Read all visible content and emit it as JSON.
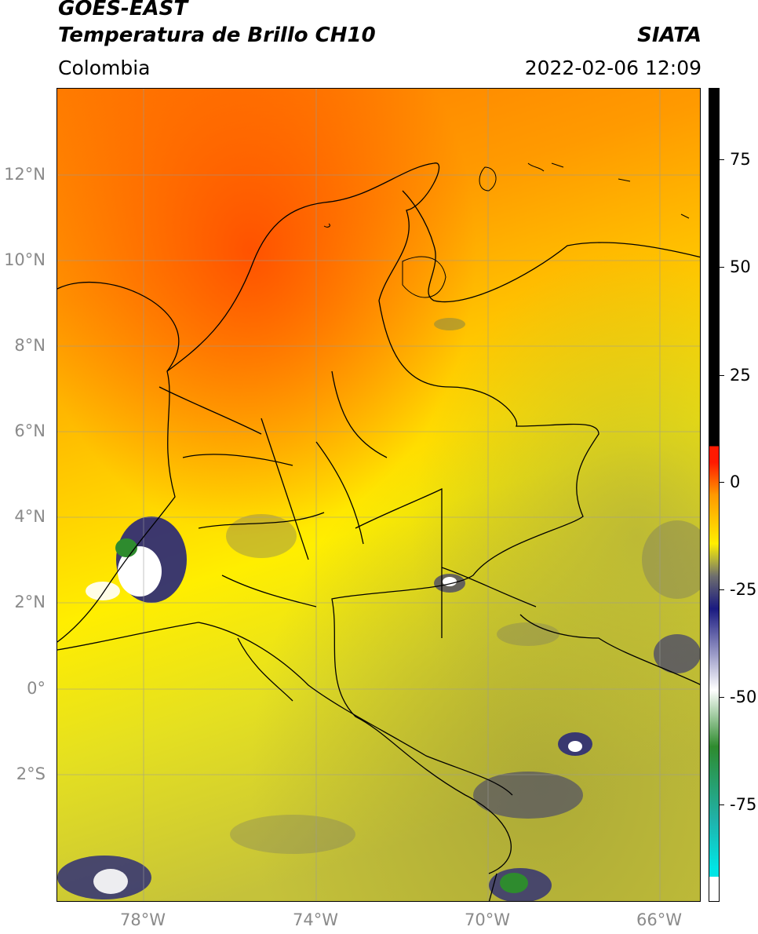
{
  "header": {
    "title_line1": "GOES-EAST",
    "title_line2": "Temperatura de Brillo CH10",
    "organization": "SIATA",
    "region": "Colombia",
    "datetime": "2022-02-06 12:09"
  },
  "map": {
    "lat_labels": [
      "12°N",
      "10°N",
      "8°N",
      "6°N",
      "4°N",
      "2°N",
      "0°",
      "2°S"
    ],
    "lon_labels": [
      "78°W",
      "74°W",
      "70°W",
      "66°W"
    ]
  },
  "colorbar": {
    "ticks": [
      "75",
      "50",
      "25",
      "0",
      "-25",
      "-50",
      "-75"
    ],
    "colors": {
      "black": "#000000",
      "red": "#ff1a00",
      "orange": "#ff9900",
      "yellow": "#ffee00",
      "olive": "#b5b33a",
      "gray": "#6e6e6e",
      "navy": "#1a1a80",
      "white": "#ffffff",
      "green": "#2e8b2e",
      "teal": "#20b2aa",
      "cyan": "#00e5e5"
    }
  }
}
